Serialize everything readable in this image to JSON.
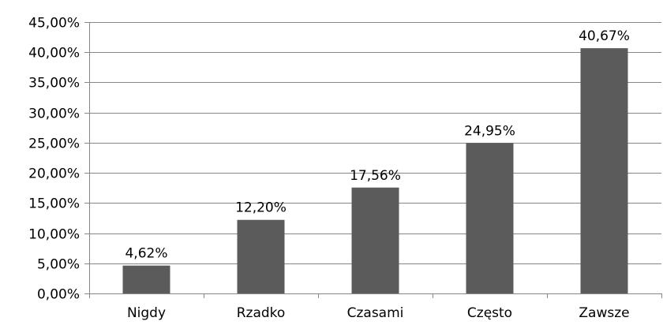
{
  "chart_data": {
    "type": "bar",
    "title": "",
    "xlabel": "",
    "ylabel": "",
    "categories": [
      "Nigdy",
      "Rzadko",
      "Czasami",
      "Często",
      "Zawsze"
    ],
    "values": [
      4.62,
      12.2,
      17.56,
      24.95,
      40.67
    ],
    "data_labels": [
      "4,62%",
      "12,20%",
      "17,56%",
      "24,95%",
      "40,67%"
    ],
    "ylim": [
      0,
      45
    ],
    "yticks": [
      0,
      5,
      10,
      15,
      20,
      25,
      30,
      35,
      40,
      45
    ],
    "ytick_labels": [
      "0,00%",
      "5,00%",
      "10,00%",
      "15,00%",
      "20,00%",
      "25,00%",
      "30,00%",
      "35,00%",
      "40,00%",
      "45,00%"
    ],
    "grid": true,
    "legend": "none",
    "colors": {
      "bar": "#5b5b5b",
      "grid": "#878787",
      "axis": "#878787"
    }
  }
}
